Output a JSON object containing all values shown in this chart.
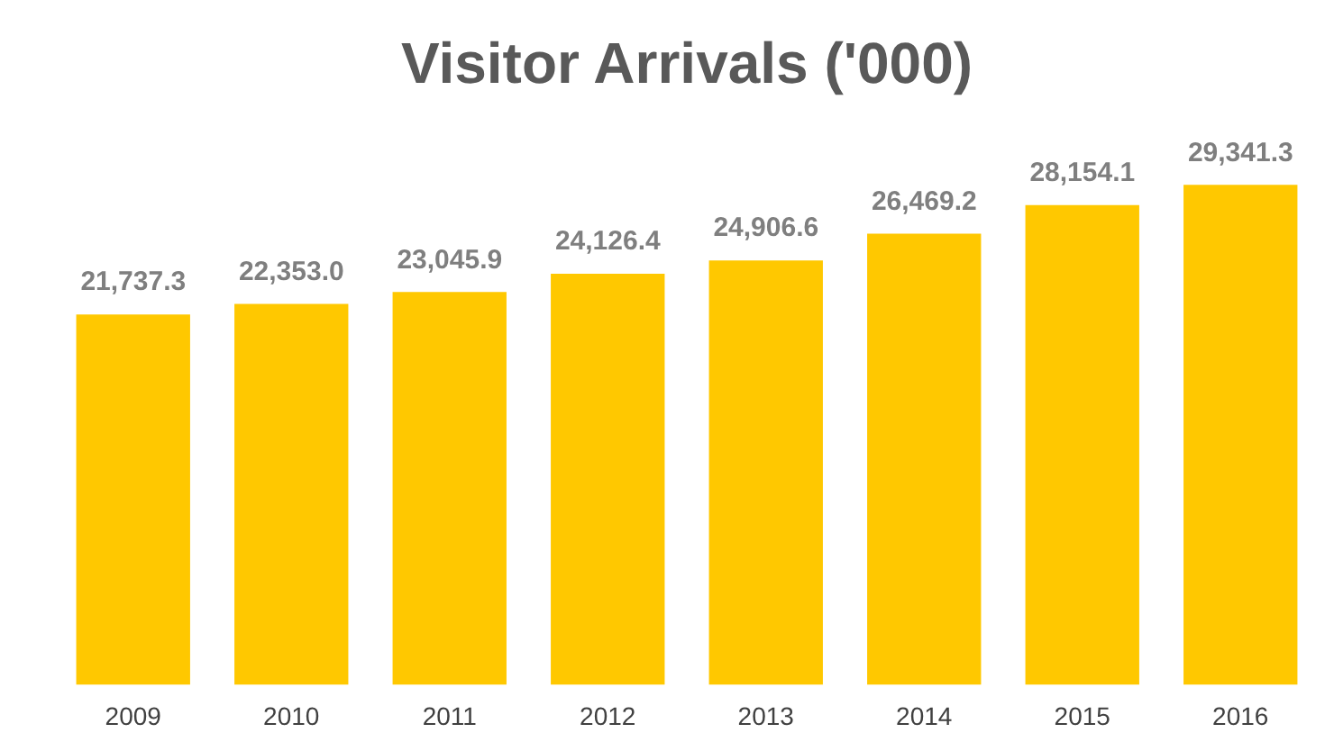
{
  "chart_data": {
    "type": "bar",
    "title": "Visitor Arrivals ('000)",
    "categories": [
      "2009",
      "2010",
      "2011",
      "2012",
      "2013",
      "2014",
      "2015",
      "2016"
    ],
    "values": [
      21737.3,
      22353.0,
      23045.9,
      24126.4,
      24906.6,
      26469.2,
      28154.1,
      29341.3
    ],
    "value_labels": [
      "21,737.3",
      "22,353.0",
      "23,045.9",
      "24,126.4",
      "24,906.6",
      "26,469.2",
      "28,154.1",
      "29,341.3"
    ],
    "color": "#ffc800",
    "grid": false,
    "legend": false
  }
}
